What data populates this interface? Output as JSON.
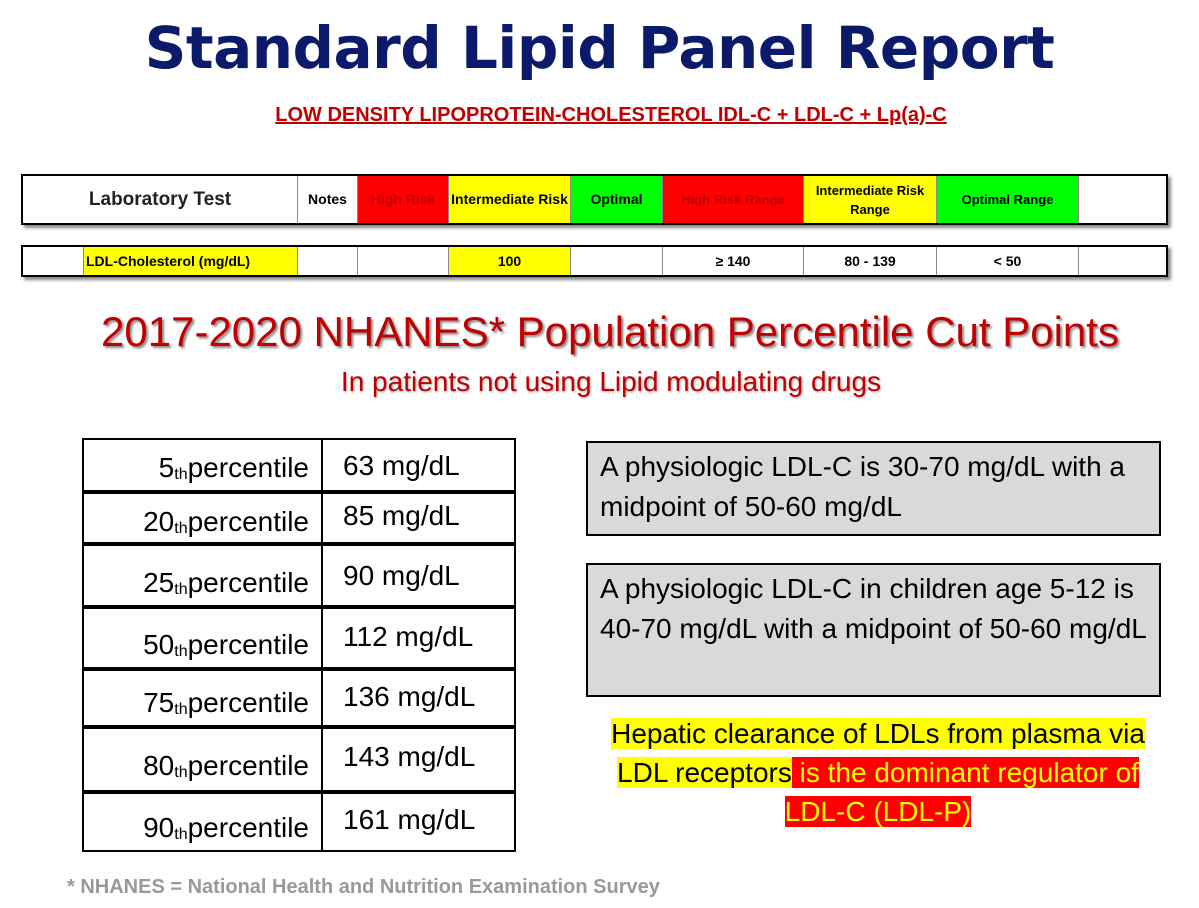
{
  "title": "Standard Lipid Panel Report",
  "subtitle": "LOW DENSITY LIPOPROTEIN-CHOLESTEROL  IDL-C + LDL-C + Lp(a)-C",
  "header": {
    "lab_test": "Laboratory Test",
    "notes": "Notes",
    "high_risk": "High Risk",
    "intermediate_risk": "Intermediate Risk",
    "optimal": "Optimal",
    "high_risk_range": "High Risk Range",
    "intermediate_risk_range": "Intermediate Risk Range",
    "optimal_range": "Optimal Range"
  },
  "ldl_row": {
    "test_name": "LDL-Cholesterol (mg/dL)",
    "intermediate_value": "100",
    "high_risk_range": "≥ 140",
    "intermediate_range": "80 - 139",
    "optimal_range": "< 50"
  },
  "nhanes": {
    "title": "2017-2020 NHANES* Population Percentile Cut Points",
    "subtitle": "In patients not using Lipid modulating drugs"
  },
  "percentiles": [
    {
      "num": "5",
      "suffix": "th",
      "label": " percentile",
      "value": "63 mg/dL"
    },
    {
      "num": "20",
      "suffix": "th",
      "label": " percentile",
      "value": "85 mg/dL"
    },
    {
      "num": "25",
      "suffix": "th",
      "label": " percentile",
      "value": "90 mg/dL"
    },
    {
      "num": "50",
      "suffix": "th",
      "label": " percentile",
      "value": "112 mg/dL"
    },
    {
      "num": "75",
      "suffix": "th",
      "label": " percentile",
      "value": "136 mg/dL"
    },
    {
      "num": "80",
      "suffix": "th",
      "label": " percentile",
      "value": "143 mg/dL"
    },
    {
      "num": "90",
      "suffix": "th",
      "label": " percentile",
      "value": "161 mg/dL"
    }
  ],
  "info": {
    "adult": " A physiologic LDL-C is 30-70 mg/dL with a midpoint of 50-60 mg/dL",
    "children": " A physiologic LDL-C in children age 5-12 is 40-70 mg/dL with a midpoint of 50-60 mg/dL"
  },
  "hepatic": {
    "part1": "Hepatic clearance of LDLs from plasma via LDL receptors",
    "part2": " is the dominant regulator of LDL-C (LDL-P)"
  },
  "footnote": "* NHANES = National Health and Nutrition Examination Survey",
  "colors": {
    "title": "#0c1a6b",
    "accent_red": "#c00000",
    "high_risk": "#ff0000",
    "intermediate": "#ffff00",
    "optimal": "#00ff00",
    "info_bg": "#d9d9d9"
  }
}
